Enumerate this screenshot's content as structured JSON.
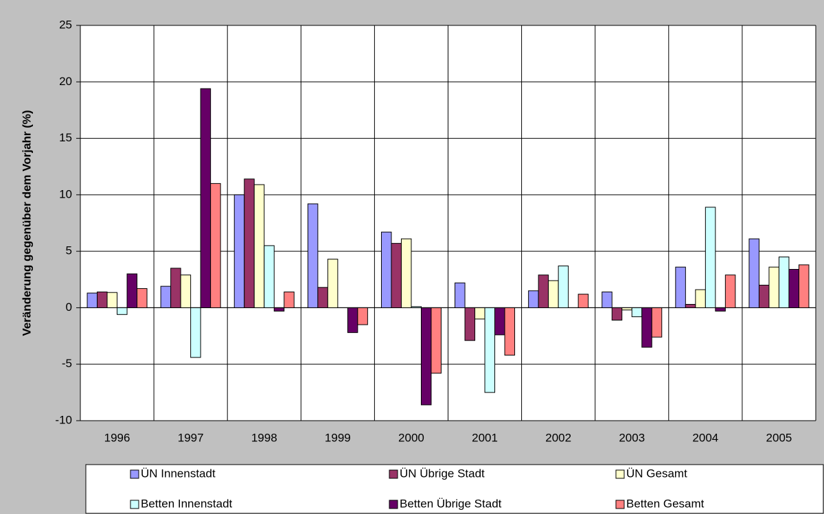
{
  "chart_data": {
    "type": "bar",
    "y_label": "Veränderung gegenüber dem Vorjahr (%)",
    "categories": [
      "1996",
      "1997",
      "1998",
      "1999",
      "2000",
      "2001",
      "2002",
      "2003",
      "2004",
      "2005"
    ],
    "series": [
      {
        "name": "ÜN Innenstadt",
        "color": "#9999ff",
        "values": [
          1.3,
          1.9,
          10.0,
          9.2,
          6.7,
          2.2,
          1.5,
          1.4,
          3.6,
          6.1
        ]
      },
      {
        "name": "ÜN Übrige Stadt",
        "color": "#993366",
        "values": [
          1.4,
          3.5,
          11.4,
          1.8,
          5.7,
          -2.9,
          2.9,
          -1.1,
          0.3,
          2.0
        ]
      },
      {
        "name": "ÜN Gesamt",
        "color": "#ffffcc",
        "values": [
          1.35,
          2.9,
          10.9,
          4.3,
          6.1,
          -1.0,
          2.4,
          -0.2,
          1.6,
          3.6
        ]
      },
      {
        "name": "Betten Innenstadt",
        "color": "#ccffff",
        "values": [
          -0.6,
          -4.4,
          5.5,
          0,
          0.1,
          -7.5,
          3.7,
          -0.8,
          8.9,
          4.5
        ]
      },
      {
        "name": "Betten Übrige Stadt",
        "color": "#660066",
        "values": [
          3.0,
          19.4,
          -0.3,
          -2.2,
          -8.6,
          -2.4,
          0,
          -3.5,
          -0.3,
          3.4
        ]
      },
      {
        "name": "Betten Gesamt",
        "color": "#ff8080",
        "values": [
          1.7,
          11.0,
          1.4,
          -1.5,
          -5.8,
          -4.2,
          1.2,
          -2.6,
          2.9,
          3.8
        ]
      }
    ],
    "ylim": [
      -10,
      25
    ],
    "yticks": [
      -10,
      -5,
      0,
      5,
      10,
      15,
      20,
      25
    ],
    "grid": true
  }
}
